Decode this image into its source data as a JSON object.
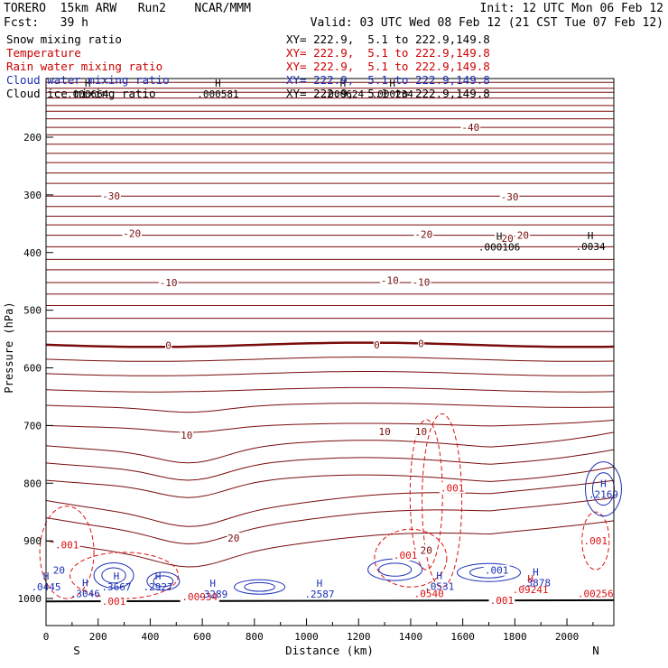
{
  "header": {
    "model": "TORERO  15km ARW   Run2    NCAR/MMM",
    "init": "Init: 12 UTC Mon 06 Feb 12",
    "fcst": "Fcst:   39 h",
    "valid": "Valid: 03 UTC Wed 08 Feb 12 (21 CST Tue 07 Feb 12)"
  },
  "fields": [
    {
      "name": "Snow mixing ratio",
      "color": "#000000",
      "xy": "XY= 222.9,  5.1 to 222.9,149.8"
    },
    {
      "name": "Temperature",
      "color": "#cc0000",
      "xy": "XY= 222.9,  5.1 to 222.9,149.8"
    },
    {
      "name": "Rain water mixing ratio",
      "color": "#cc0000",
      "xy": "XY= 222.9,  5.1 to 222.9,149.8"
    },
    {
      "name": "Cloud water mixing ratio",
      "color": "#1a2fb5",
      "xy": "XY= 222.9,  5.1 to 222.9,149.8"
    },
    {
      "name": "Cloud ice mixing ratio",
      "color": "#000000",
      "xy": "XY= 222.9,  5.1 to 222.9,149.8"
    }
  ],
  "chart_data": {
    "type": "line",
    "xlabel": "Distance (km)",
    "ylabel": "Pressure (hPa)",
    "xlim": [
      0,
      2180
    ],
    "ylim": [
      1050,
      100
    ],
    "x_ticks": [
      "0",
      "200",
      "400",
      "600",
      "800",
      "1000",
      "1200",
      "1400",
      "1600",
      "1800",
      "2000"
    ],
    "y_ticks": [
      "200",
      "300",
      "400",
      "500",
      "600",
      "700",
      "800",
      "900",
      "1000"
    ],
    "x_tick_values": [
      0,
      200,
      400,
      600,
      800,
      1000,
      1200,
      1400,
      1600,
      1800,
      2000
    ],
    "y_tick_values": [
      200,
      300,
      400,
      500,
      600,
      700,
      800,
      900,
      1000
    ],
    "end_labels": {
      "left": "S",
      "right": "N"
    },
    "colors": {
      "temperature": "#7a0c0c",
      "rain": "#dd1111",
      "cloud": "#1a2fb5",
      "snow": "#000000"
    },
    "temperature_isotherms": [
      {
        "label": "-40",
        "p": 183
      },
      {
        "label": "-30",
        "p": 302
      },
      {
        "label": "-20",
        "p": 370
      },
      {
        "label": "-10",
        "p": 452
      },
      {
        "label": "0",
        "p": 560
      },
      {
        "label": "10",
        "p": 700
      },
      {
        "label": "20",
        "p": 900
      }
    ],
    "contour_labels": [
      {
        "text": "-40",
        "x": 1630,
        "p": 183,
        "color": "temperature"
      },
      {
        "text": "-30",
        "x": 250,
        "p": 302,
        "color": "temperature"
      },
      {
        "text": "-30",
        "x": 1780,
        "p": 303,
        "color": "temperature"
      },
      {
        "text": "-20",
        "x": 330,
        "p": 367,
        "color": "temperature"
      },
      {
        "text": "-20",
        "x": 1450,
        "p": 368,
        "color": "temperature"
      },
      {
        "text": "-20",
        "x": 1820,
        "p": 370,
        "color": "temperature"
      },
      {
        "text": "-10",
        "x": 470,
        "p": 452,
        "color": "temperature"
      },
      {
        "text": "-10",
        "x": 1320,
        "p": 448,
        "color": "temperature"
      },
      {
        "text": "-10",
        "x": 1440,
        "p": 451,
        "color": "temperature"
      },
      {
        "text": "0",
        "x": 470,
        "p": 561,
        "color": "temperature"
      },
      {
        "text": "0",
        "x": 1270,
        "p": 560,
        "color": "temperature"
      },
      {
        "text": "0",
        "x": 1440,
        "p": 558,
        "color": "temperature"
      },
      {
        "text": "10",
        "x": 540,
        "p": 717,
        "color": "temperature"
      },
      {
        "text": "10",
        "x": 1300,
        "p": 710,
        "color": "temperature"
      },
      {
        "text": "10",
        "x": 1440,
        "p": 710,
        "color": "temperature"
      },
      {
        "text": "20",
        "x": 720,
        "p": 895,
        "color": "temperature"
      },
      {
        "text": "20",
        "x": 1460,
        "p": 916,
        "color": "temperature"
      },
      {
        "text": "-20",
        "x": 1760,
        "p": 375,
        "color": "temperature"
      },
      {
        "text": ".001",
        "x": 1560,
        "p": 808,
        "color": "rain"
      },
      {
        "text": ".001",
        "x": 80,
        "p": 907,
        "color": "rain"
      },
      {
        "text": ".001",
        "x": 2110,
        "p": 900,
        "color": "rain"
      },
      {
        "text": ".001",
        "x": 1380,
        "p": 925,
        "color": "rain"
      },
      {
        "text": ".001",
        "x": 260,
        "p": 1005,
        "color": "rain"
      },
      {
        "text": ".001",
        "x": 1750,
        "p": 1003,
        "color": "rain"
      },
      {
        "text": ".00934",
        "x": 590,
        "p": 997,
        "color": "rain"
      },
      {
        "text": ".00256",
        "x": 2110,
        "p": 991,
        "color": "rain"
      },
      {
        "text": ".0540",
        "x": 1470,
        "p": 991,
        "color": "rain"
      },
      {
        "text": ".001",
        "x": 1730,
        "p": 951,
        "color": "cloud"
      },
      {
        "text": "20",
        "x": 50,
        "p": 951,
        "color": "cloud"
      }
    ],
    "highs": [
      {
        "x": 160,
        "p": 6,
        "label": ".000664",
        "color": "snow"
      },
      {
        "x": 660,
        "p": 6,
        "label": ".000581",
        "color": "snow"
      },
      {
        "x": 1140,
        "p": 6,
        "label": ".000624",
        "color": "snow"
      },
      {
        "x": 1330,
        "p": 6,
        "label": ".000234",
        "color": "snow"
      },
      {
        "x": 1740,
        "p": 378,
        "label": ".000106",
        "color": "snow"
      },
      {
        "x": 2090,
        "p": 377,
        "label": ".0034",
        "color": "snow"
      },
      {
        "x": 2140,
        "p": 807,
        "label": ".2169",
        "color": "cloud"
      },
      {
        "x": 150,
        "p": 979,
        "label": ".3046",
        "color": "cloud"
      },
      {
        "x": 270,
        "p": 967,
        "label": ".3667",
        "color": "cloud"
      },
      {
        "x": 430,
        "p": 967,
        "label": ".2927",
        "color": "cloud"
      },
      {
        "x": 640,
        "p": 980,
        "label": ".3289",
        "color": "cloud"
      },
      {
        "x": 1050,
        "p": 980,
        "label": ".2587",
        "color": "cloud"
      },
      {
        "x": 1510,
        "p": 966,
        "label": ".0531",
        "color": "cloud"
      },
      {
        "x": 1880,
        "p": 960,
        "label": ".3878",
        "color": "cloud"
      },
      {
        "x": 1860,
        "p": 972,
        "label": ".09241",
        "color": "rain"
      },
      {
        "x": 0,
        "p": 967,
        "label": ".0445",
        "color": "cloud"
      }
    ]
  }
}
